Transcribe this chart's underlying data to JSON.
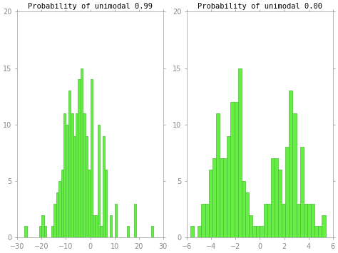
{
  "title1": "Probability of unimodal 0.99",
  "title2": "Probability of unimodal 0.00",
  "bar_color": "#66ee44",
  "bar_edge_color": "#44bb33",
  "bg_color": "#ffffff",
  "ylim": [
    0,
    20
  ],
  "yticks": [
    0,
    5,
    10,
    15,
    20
  ],
  "hist1_xlim": [
    -30,
    30
  ],
  "hist1_xticks": [
    -30,
    -20,
    -10,
    0,
    10,
    20,
    30
  ],
  "hist2_xlim": [
    -6,
    6
  ],
  "hist2_xticks": [
    -6,
    -4,
    -2,
    0,
    2,
    4,
    6
  ],
  "hist1_bins_left": [
    -27,
    -26,
    -25,
    -24,
    -23,
    -22,
    -21,
    -20,
    -19,
    -18,
    -17,
    -16,
    -15,
    -14,
    -13,
    -12,
    -11,
    -10,
    -9,
    -8,
    -7,
    -6,
    -5,
    -4,
    -3,
    -2,
    -1,
    0,
    1,
    2,
    3,
    4,
    5,
    6,
    7,
    8,
    9,
    10,
    11,
    12,
    13,
    14,
    15,
    16,
    17,
    18,
    19,
    20,
    21,
    22,
    23,
    24,
    25,
    26
  ],
  "hist1_heights": [
    1,
    0,
    0,
    0,
    0,
    0,
    1,
    2,
    1,
    0,
    0,
    1,
    3,
    4,
    5,
    6,
    11,
    10,
    13,
    11,
    9,
    11,
    14,
    15,
    11,
    9,
    6,
    14,
    2,
    2,
    10,
    1,
    9,
    6,
    0,
    2,
    0,
    3,
    0,
    0,
    0,
    0,
    1,
    0,
    0,
    3,
    0,
    0,
    0,
    0,
    0,
    0,
    1,
    0
  ],
  "hist2_bins_left": [
    -5.7,
    -5.4,
    -5.1,
    -4.8,
    -4.5,
    -4.2,
    -3.9,
    -3.6,
    -3.3,
    -3.0,
    -2.7,
    -2.4,
    -2.1,
    -1.8,
    -1.5,
    -1.2,
    -0.9,
    -0.6,
    -0.3,
    0.0,
    0.3,
    0.6,
    0.9,
    1.2,
    1.5,
    1.8,
    2.1,
    2.4,
    2.7,
    3.0,
    3.3,
    3.6,
    3.9,
    4.2,
    4.5,
    4.8,
    5.1,
    5.4
  ],
  "hist2_heights": [
    1,
    0,
    1,
    3,
    3,
    6,
    7,
    11,
    7,
    7,
    9,
    12,
    12,
    15,
    5,
    4,
    2,
    1,
    1,
    1,
    3,
    3,
    7,
    7,
    6,
    3,
    8,
    13,
    11,
    3,
    8,
    3,
    3,
    3,
    1,
    1,
    2,
    0
  ],
  "hist2_bar_width": 0.3,
  "title_fontsize": 7.5,
  "tick_fontsize": 7,
  "tick_color": "#888888",
  "tick_label_color": "#888888",
  "spine_color": "#aaaaaa"
}
